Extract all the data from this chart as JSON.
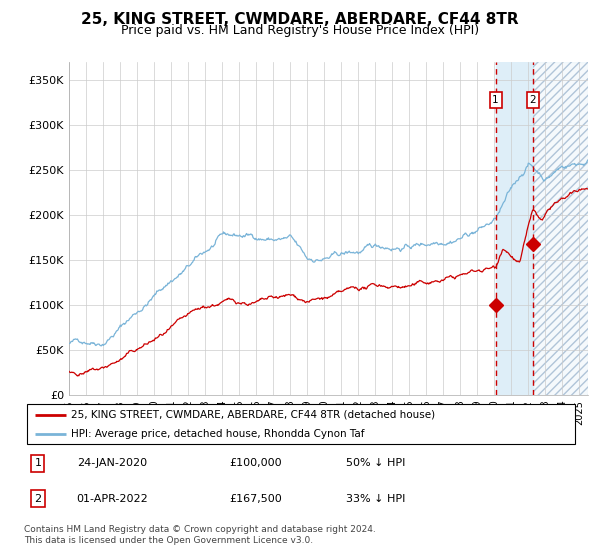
{
  "title": "25, KING STREET, CWMDARE, ABERDARE, CF44 8TR",
  "subtitle": "Price paid vs. HM Land Registry's House Price Index (HPI)",
  "ylim": [
    0,
    370000
  ],
  "yticks": [
    0,
    50000,
    100000,
    150000,
    200000,
    250000,
    300000,
    350000
  ],
  "ytick_labels": [
    "£0",
    "£50K",
    "£100K",
    "£150K",
    "£200K",
    "£250K",
    "£300K",
    "£350K"
  ],
  "x_start_year": 1995.0,
  "x_end_year": 2025.5,
  "hpi_color": "#7ab4d8",
  "price_color": "#cc0000",
  "transaction1_date": 2020.07,
  "transaction1_price": 100000,
  "transaction2_date": 2022.25,
  "transaction2_price": 167500,
  "shade_color": "#deeef8",
  "hatch_color": "#d0d8e0",
  "grid_color": "#cccccc",
  "legend_label1": "25, KING STREET, CWMDARE, ABERDARE, CF44 8TR (detached house)",
  "legend_label2": "HPI: Average price, detached house, Rhondda Cynon Taf",
  "table_row1": [
    "1",
    "24-JAN-2020",
    "£100,000",
    "50% ↓ HPI"
  ],
  "table_row2": [
    "2",
    "01-APR-2022",
    "£167,500",
    "33% ↓ HPI"
  ],
  "footer": "Contains HM Land Registry data © Crown copyright and database right 2024.\nThis data is licensed under the Open Government Licence v3.0.",
  "background_color": "#ffffff"
}
